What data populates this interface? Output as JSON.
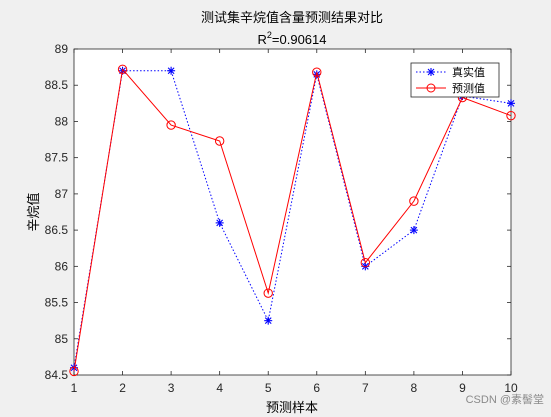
{
  "chart_data": {
    "type": "line",
    "title": "测试集辛烷值含量预测结果对比",
    "subtitle": {
      "base": "R",
      "superscript": "2",
      "rest": "=0.90614"
    },
    "xlabel": "预测样本",
    "ylabel": "辛烷值",
    "xlim": [
      1,
      10
    ],
    "ylim": [
      84.5,
      89
    ],
    "x_ticks": [
      "1",
      "2",
      "3",
      "4",
      "5",
      "6",
      "7",
      "8",
      "9",
      "10"
    ],
    "y_ticks": [
      "84.5",
      "85",
      "85.5",
      "86",
      "86.5",
      "87",
      "87.5",
      "88",
      "88.5",
      "89"
    ],
    "x": [
      1,
      2,
      3,
      4,
      5,
      6,
      7,
      8,
      9,
      10
    ],
    "series": [
      {
        "name": "真实值",
        "color": "#0000ff",
        "line_style": "dotted",
        "marker": "asterisk",
        "values": [
          84.6,
          88.7,
          88.7,
          86.6,
          85.25,
          88.65,
          86.0,
          86.5,
          88.35,
          88.25
        ]
      },
      {
        "name": "预测值",
        "color": "#ff0000",
        "line_style": "solid",
        "marker": "circle",
        "values": [
          84.55,
          88.72,
          87.95,
          87.73,
          85.63,
          88.68,
          86.05,
          86.9,
          88.33,
          88.08
        ]
      }
    ],
    "legend_position": "top-right",
    "grid": false
  },
  "watermark": "CSDN @素髻堂"
}
